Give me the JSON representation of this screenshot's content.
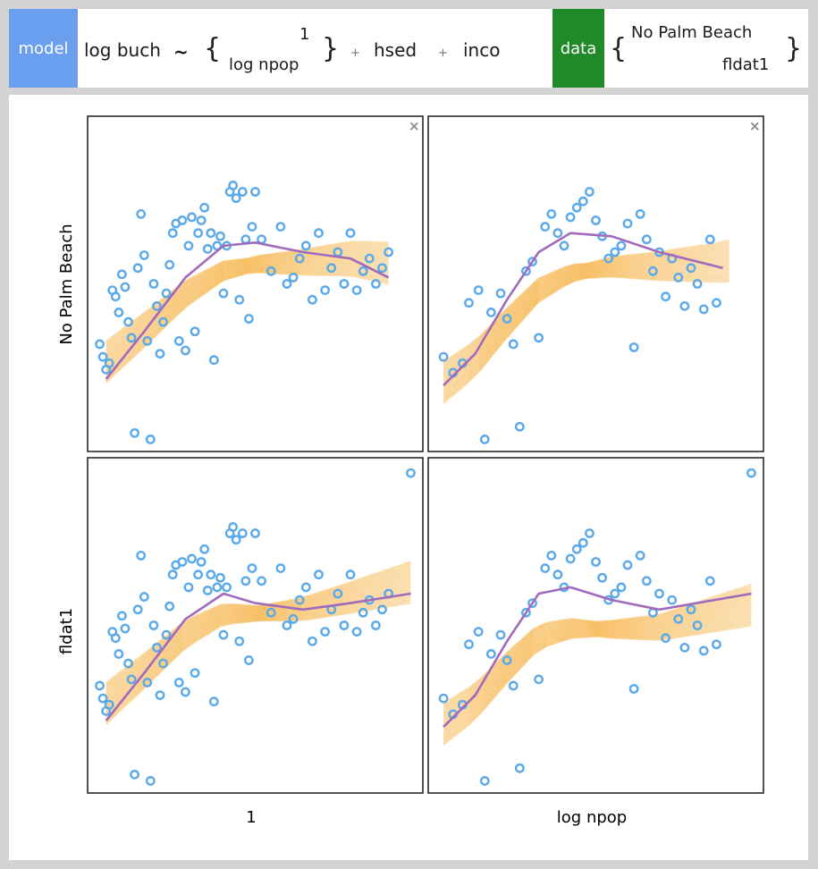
{
  "header": {
    "model_label": "model",
    "response": "log buch",
    "tilde": "~",
    "term_top": "1",
    "term_bottom": "log npop",
    "plus1": "+",
    "term2": "hsed",
    "plus2": "+",
    "term3": "inco",
    "data_label": "data",
    "data_top": "No Palm Beach",
    "data_bottom": "fldat1"
  },
  "close_glyph": "×",
  "colors": {
    "model_chip": "#6a9ff0",
    "data_chip": "#1f8a27",
    "points": "#5aa9ea",
    "bands": "#f5a623",
    "smooth": "#a16bbd"
  },
  "chart_data": [
    {
      "type": "scatter",
      "row": "No Palm Beach",
      "col": "1",
      "closeable": true,
      "points": [
        [
          0.01,
          0.31
        ],
        [
          0.02,
          0.27
        ],
        [
          0.03,
          0.23
        ],
        [
          0.04,
          0.25
        ],
        [
          0.05,
          0.48
        ],
        [
          0.06,
          0.46
        ],
        [
          0.07,
          0.41
        ],
        [
          0.08,
          0.53
        ],
        [
          0.09,
          0.49
        ],
        [
          0.1,
          0.38
        ],
        [
          0.11,
          0.33
        ],
        [
          0.12,
          0.03
        ],
        [
          0.13,
          0.55
        ],
        [
          0.14,
          0.72
        ],
        [
          0.15,
          0.59
        ],
        [
          0.16,
          0.32
        ],
        [
          0.17,
          0.01
        ],
        [
          0.18,
          0.5
        ],
        [
          0.19,
          0.43
        ],
        [
          0.2,
          0.28
        ],
        [
          0.21,
          0.38
        ],
        [
          0.22,
          0.47
        ],
        [
          0.23,
          0.56
        ],
        [
          0.24,
          0.66
        ],
        [
          0.25,
          0.69
        ],
        [
          0.26,
          0.32
        ],
        [
          0.27,
          0.7
        ],
        [
          0.28,
          0.29
        ],
        [
          0.29,
          0.62
        ],
        [
          0.3,
          0.71
        ],
        [
          0.31,
          0.35
        ],
        [
          0.32,
          0.66
        ],
        [
          0.33,
          0.7
        ],
        [
          0.34,
          0.74
        ],
        [
          0.35,
          0.61
        ],
        [
          0.36,
          0.66
        ],
        [
          0.37,
          0.26
        ],
        [
          0.38,
          0.62
        ],
        [
          0.39,
          0.65
        ],
        [
          0.4,
          0.47
        ],
        [
          0.41,
          0.62
        ],
        [
          0.42,
          0.79
        ],
        [
          0.43,
          0.81
        ],
        [
          0.44,
          0.77
        ],
        [
          0.45,
          0.45
        ],
        [
          0.46,
          0.79
        ],
        [
          0.47,
          0.64
        ],
        [
          0.48,
          0.39
        ],
        [
          0.49,
          0.68
        ],
        [
          0.5,
          0.79
        ],
        [
          0.52,
          0.64
        ],
        [
          0.55,
          0.54
        ],
        [
          0.58,
          0.68
        ],
        [
          0.6,
          0.5
        ],
        [
          0.62,
          0.52
        ],
        [
          0.64,
          0.58
        ],
        [
          0.66,
          0.62
        ],
        [
          0.68,
          0.45
        ],
        [
          0.7,
          0.66
        ],
        [
          0.72,
          0.48
        ],
        [
          0.74,
          0.55
        ],
        [
          0.76,
          0.6
        ],
        [
          0.78,
          0.5
        ],
        [
          0.8,
          0.66
        ],
        [
          0.82,
          0.48
        ],
        [
          0.84,
          0.54
        ],
        [
          0.86,
          0.58
        ],
        [
          0.88,
          0.5
        ],
        [
          0.9,
          0.55
        ],
        [
          0.92,
          0.6
        ]
      ],
      "smooth": [
        [
          0.03,
          0.2
        ],
        [
          0.15,
          0.35
        ],
        [
          0.28,
          0.52
        ],
        [
          0.4,
          0.62
        ],
        [
          0.5,
          0.63
        ],
        [
          0.65,
          0.6
        ],
        [
          0.8,
          0.58
        ],
        [
          0.92,
          0.52
        ]
      ],
      "band_start": [
        0.03,
        0.32
      ],
      "band_end": [
        0.92,
        0.62
      ],
      "ylim": [
        0,
        1
      ],
      "xlim": [
        0,
        1
      ]
    },
    {
      "type": "scatter",
      "row": "No Palm Beach",
      "col": "log npop",
      "closeable": true,
      "points": [
        [
          0.02,
          0.27
        ],
        [
          0.05,
          0.22
        ],
        [
          0.08,
          0.25
        ],
        [
          0.1,
          0.44
        ],
        [
          0.13,
          0.48
        ],
        [
          0.15,
          0.01
        ],
        [
          0.17,
          0.41
        ],
        [
          0.2,
          0.47
        ],
        [
          0.22,
          0.39
        ],
        [
          0.24,
          0.31
        ],
        [
          0.26,
          0.05
        ],
        [
          0.28,
          0.54
        ],
        [
          0.3,
          0.57
        ],
        [
          0.32,
          0.33
        ],
        [
          0.34,
          0.68
        ],
        [
          0.36,
          0.72
        ],
        [
          0.38,
          0.66
        ],
        [
          0.4,
          0.62
        ],
        [
          0.42,
          0.71
        ],
        [
          0.44,
          0.74
        ],
        [
          0.46,
          0.76
        ],
        [
          0.48,
          0.79
        ],
        [
          0.5,
          0.7
        ],
        [
          0.52,
          0.65
        ],
        [
          0.54,
          0.58
        ],
        [
          0.56,
          0.6
        ],
        [
          0.58,
          0.62
        ],
        [
          0.6,
          0.69
        ],
        [
          0.62,
          0.3
        ],
        [
          0.64,
          0.72
        ],
        [
          0.66,
          0.64
        ],
        [
          0.68,
          0.54
        ],
        [
          0.7,
          0.6
        ],
        [
          0.72,
          0.46
        ],
        [
          0.74,
          0.58
        ],
        [
          0.76,
          0.52
        ],
        [
          0.78,
          0.43
        ],
        [
          0.8,
          0.55
        ],
        [
          0.82,
          0.5
        ],
        [
          0.84,
          0.42
        ],
        [
          0.86,
          0.64
        ],
        [
          0.88,
          0.44
        ]
      ],
      "smooth": [
        [
          0.02,
          0.18
        ],
        [
          0.12,
          0.28
        ],
        [
          0.22,
          0.45
        ],
        [
          0.32,
          0.6
        ],
        [
          0.42,
          0.66
        ],
        [
          0.55,
          0.65
        ],
        [
          0.7,
          0.6
        ],
        [
          0.9,
          0.55
        ]
      ],
      "band_start": [
        0.02,
        0.2
      ],
      "band_end": [
        0.92,
        0.6
      ],
      "ylim": [
        0,
        1
      ],
      "xlim": [
        0,
        1
      ]
    },
    {
      "type": "scatter",
      "row": "fldat1",
      "col": "1",
      "closeable": false,
      "points": [
        [
          0.01,
          0.31
        ],
        [
          0.02,
          0.27
        ],
        [
          0.03,
          0.23
        ],
        [
          0.04,
          0.25
        ],
        [
          0.05,
          0.48
        ],
        [
          0.06,
          0.46
        ],
        [
          0.07,
          0.41
        ],
        [
          0.08,
          0.53
        ],
        [
          0.09,
          0.49
        ],
        [
          0.1,
          0.38
        ],
        [
          0.11,
          0.33
        ],
        [
          0.12,
          0.03
        ],
        [
          0.13,
          0.55
        ],
        [
          0.14,
          0.72
        ],
        [
          0.15,
          0.59
        ],
        [
          0.16,
          0.32
        ],
        [
          0.17,
          0.01
        ],
        [
          0.18,
          0.5
        ],
        [
          0.19,
          0.43
        ],
        [
          0.2,
          0.28
        ],
        [
          0.21,
          0.38
        ],
        [
          0.22,
          0.47
        ],
        [
          0.23,
          0.56
        ],
        [
          0.24,
          0.66
        ],
        [
          0.25,
          0.69
        ],
        [
          0.26,
          0.32
        ],
        [
          0.27,
          0.7
        ],
        [
          0.28,
          0.29
        ],
        [
          0.29,
          0.62
        ],
        [
          0.3,
          0.71
        ],
        [
          0.31,
          0.35
        ],
        [
          0.32,
          0.66
        ],
        [
          0.33,
          0.7
        ],
        [
          0.34,
          0.74
        ],
        [
          0.35,
          0.61
        ],
        [
          0.36,
          0.66
        ],
        [
          0.37,
          0.26
        ],
        [
          0.38,
          0.62
        ],
        [
          0.39,
          0.65
        ],
        [
          0.4,
          0.47
        ],
        [
          0.41,
          0.62
        ],
        [
          0.42,
          0.79
        ],
        [
          0.43,
          0.81
        ],
        [
          0.44,
          0.77
        ],
        [
          0.45,
          0.45
        ],
        [
          0.46,
          0.79
        ],
        [
          0.47,
          0.64
        ],
        [
          0.48,
          0.39
        ],
        [
          0.49,
          0.68
        ],
        [
          0.5,
          0.79
        ],
        [
          0.52,
          0.64
        ],
        [
          0.55,
          0.54
        ],
        [
          0.58,
          0.68
        ],
        [
          0.6,
          0.5
        ],
        [
          0.62,
          0.52
        ],
        [
          0.64,
          0.58
        ],
        [
          0.66,
          0.62
        ],
        [
          0.68,
          0.45
        ],
        [
          0.7,
          0.66
        ],
        [
          0.72,
          0.48
        ],
        [
          0.74,
          0.55
        ],
        [
          0.76,
          0.6
        ],
        [
          0.78,
          0.5
        ],
        [
          0.8,
          0.66
        ],
        [
          0.82,
          0.48
        ],
        [
          0.84,
          0.54
        ],
        [
          0.86,
          0.58
        ],
        [
          0.88,
          0.5
        ],
        [
          0.9,
          0.55
        ],
        [
          0.92,
          0.6
        ],
        [
          0.99,
          0.98
        ]
      ],
      "smooth": [
        [
          0.03,
          0.2
        ],
        [
          0.15,
          0.35
        ],
        [
          0.28,
          0.52
        ],
        [
          0.4,
          0.6
        ],
        [
          0.5,
          0.57
        ],
        [
          0.65,
          0.55
        ],
        [
          0.8,
          0.57
        ],
        [
          0.99,
          0.6
        ]
      ],
      "band_start": [
        0.03,
        0.32
      ],
      "band_end": [
        0.99,
        0.68
      ],
      "ylim": [
        0,
        1
      ],
      "xlim": [
        0,
        1
      ]
    },
    {
      "type": "scatter",
      "row": "fldat1",
      "col": "log npop",
      "closeable": false,
      "points": [
        [
          0.02,
          0.27
        ],
        [
          0.05,
          0.22
        ],
        [
          0.08,
          0.25
        ],
        [
          0.1,
          0.44
        ],
        [
          0.13,
          0.48
        ],
        [
          0.15,
          0.01
        ],
        [
          0.17,
          0.41
        ],
        [
          0.2,
          0.47
        ],
        [
          0.22,
          0.39
        ],
        [
          0.24,
          0.31
        ],
        [
          0.26,
          0.05
        ],
        [
          0.28,
          0.54
        ],
        [
          0.3,
          0.57
        ],
        [
          0.32,
          0.33
        ],
        [
          0.34,
          0.68
        ],
        [
          0.36,
          0.72
        ],
        [
          0.38,
          0.66
        ],
        [
          0.4,
          0.62
        ],
        [
          0.42,
          0.71
        ],
        [
          0.44,
          0.74
        ],
        [
          0.46,
          0.76
        ],
        [
          0.48,
          0.79
        ],
        [
          0.5,
          0.7
        ],
        [
          0.52,
          0.65
        ],
        [
          0.54,
          0.58
        ],
        [
          0.56,
          0.6
        ],
        [
          0.58,
          0.62
        ],
        [
          0.6,
          0.69
        ],
        [
          0.62,
          0.3
        ],
        [
          0.64,
          0.72
        ],
        [
          0.66,
          0.64
        ],
        [
          0.68,
          0.54
        ],
        [
          0.7,
          0.6
        ],
        [
          0.72,
          0.46
        ],
        [
          0.74,
          0.58
        ],
        [
          0.76,
          0.52
        ],
        [
          0.78,
          0.43
        ],
        [
          0.8,
          0.55
        ],
        [
          0.82,
          0.5
        ],
        [
          0.84,
          0.42
        ],
        [
          0.86,
          0.64
        ],
        [
          0.88,
          0.44
        ],
        [
          0.99,
          0.98
        ]
      ],
      "smooth": [
        [
          0.02,
          0.18
        ],
        [
          0.12,
          0.28
        ],
        [
          0.22,
          0.45
        ],
        [
          0.32,
          0.6
        ],
        [
          0.42,
          0.62
        ],
        [
          0.55,
          0.58
        ],
        [
          0.7,
          0.55
        ],
        [
          0.99,
          0.6
        ]
      ],
      "band_start": [
        0.02,
        0.2
      ],
      "band_end": [
        0.99,
        0.52
      ],
      "ylim": [
        0,
        1
      ],
      "xlim": [
        0,
        1
      ]
    }
  ],
  "axes": {
    "row_labels": [
      "No Palm Beach",
      "fldat1"
    ],
    "col_labels": [
      "1",
      "log npop"
    ]
  }
}
